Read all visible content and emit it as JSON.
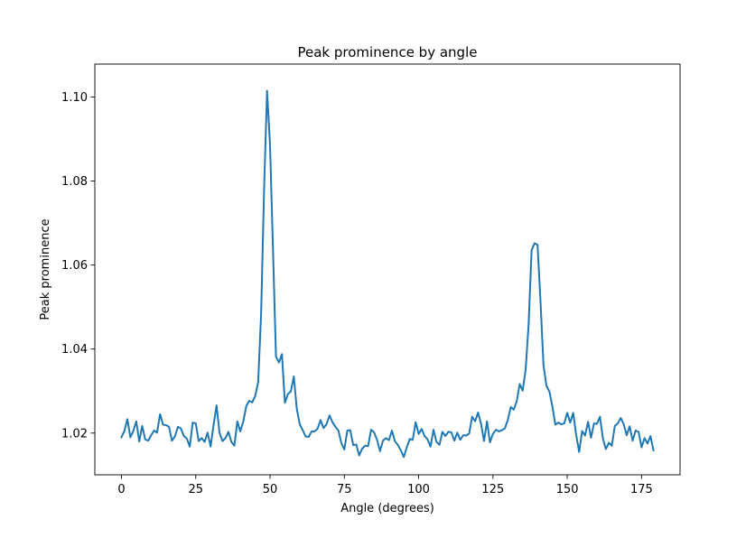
{
  "chart_data": {
    "type": "line",
    "title": "Peak prominence by angle",
    "xlabel": "Angle (degrees)",
    "ylabel": "Peak prominence",
    "xlim": [
      -8.95,
      187.95
    ],
    "ylim": [
      1.01007,
      1.10783
    ],
    "xticks": [
      0,
      25,
      50,
      75,
      100,
      125,
      150,
      175
    ],
    "yticks": [
      1.02,
      1.04,
      1.06,
      1.08,
      1.1
    ],
    "xtick_labels": [
      "0",
      "25",
      "50",
      "75",
      "100",
      "125",
      "150",
      "175"
    ],
    "ytick_labels": [
      "1.02",
      "1.04",
      "1.06",
      "1.08",
      "1.10"
    ],
    "grid": false,
    "legend": "none",
    "series": [
      {
        "color": "#1f77b4",
        "x": [
          0,
          1,
          2,
          3,
          4,
          5,
          6,
          7,
          8,
          9,
          10,
          11,
          12,
          13,
          14,
          15,
          16,
          17,
          18,
          19,
          20,
          21,
          22,
          23,
          24,
          25,
          26,
          27,
          28,
          29,
          30,
          31,
          32,
          33,
          34,
          35,
          36,
          37,
          38,
          39,
          40,
          41,
          42,
          43,
          44,
          45,
          46,
          47,
          48,
          49,
          50,
          51,
          52,
          53,
          54,
          55,
          56,
          57,
          58,
          59,
          60,
          61,
          62,
          63,
          64,
          65,
          66,
          67,
          68,
          69,
          70,
          71,
          72,
          73,
          74,
          75,
          76,
          77,
          78,
          79,
          80,
          81,
          82,
          83,
          84,
          85,
          86,
          87,
          88,
          89,
          90,
          91,
          92,
          93,
          94,
          95,
          96,
          97,
          98,
          99,
          100,
          101,
          102,
          103,
          104,
          105,
          106,
          107,
          108,
          109,
          110,
          111,
          112,
          113,
          114,
          115,
          116,
          117,
          118,
          119,
          120,
          121,
          122,
          123,
          124,
          125,
          126,
          127,
          128,
          129,
          130,
          131,
          132,
          133,
          134,
          135,
          136,
          137,
          138,
          139,
          140,
          141,
          142,
          143,
          144,
          145,
          146,
          147,
          148,
          149,
          150,
          151,
          152,
          153,
          154,
          155,
          156,
          157,
          158,
          159,
          160,
          161,
          162,
          163,
          164,
          165,
          166,
          167,
          168,
          169,
          170,
          171,
          172,
          173,
          174,
          175,
          176,
          177,
          178,
          179
        ],
        "y": [
          1.019,
          1.0205,
          1.0233,
          1.019,
          1.0205,
          1.0228,
          1.018,
          1.0217,
          1.0185,
          1.0182,
          1.0195,
          1.0206,
          1.0201,
          1.0245,
          1.022,
          1.0219,
          1.0215,
          1.0182,
          1.0192,
          1.0215,
          1.0211,
          1.0193,
          1.0187,
          1.0168,
          1.0225,
          1.0223,
          1.0181,
          1.0188,
          1.0179,
          1.0201,
          1.0168,
          1.0219,
          1.0266,
          1.0201,
          1.0181,
          1.0188,
          1.0203,
          1.0179,
          1.017,
          1.0228,
          1.0204,
          1.0228,
          1.0264,
          1.0277,
          1.0273,
          1.0288,
          1.0321,
          1.0483,
          1.078,
          1.1015,
          1.0885,
          1.0635,
          1.0382,
          1.0368,
          1.0388,
          1.0272,
          1.0293,
          1.0299,
          1.0335,
          1.0258,
          1.0221,
          1.0207,
          1.0192,
          1.0191,
          1.0204,
          1.0204,
          1.0211,
          1.0231,
          1.0212,
          1.0221,
          1.0242,
          1.0226,
          1.0215,
          1.0206,
          1.0176,
          1.0161,
          1.0206,
          1.0207,
          1.0171,
          1.0173,
          1.0147,
          1.0163,
          1.017,
          1.0169,
          1.0208,
          1.0202,
          1.0184,
          1.0157,
          1.0182,
          1.0188,
          1.0183,
          1.0206,
          1.0181,
          1.0172,
          1.0159,
          1.0143,
          1.0166,
          1.0186,
          1.0184,
          1.0226,
          1.0198,
          1.021,
          1.0193,
          1.0185,
          1.0168,
          1.0208,
          1.0179,
          1.0172,
          1.0203,
          1.0193,
          1.0203,
          1.0202,
          1.0182,
          1.0201,
          1.0184,
          1.0195,
          1.0194,
          1.0199,
          1.0239,
          1.0228,
          1.0249,
          1.0222,
          1.0181,
          1.0228,
          1.0178,
          1.0198,
          1.0208,
          1.0204,
          1.0207,
          1.0211,
          1.0231,
          1.0262,
          1.0256,
          1.0275,
          1.0317,
          1.0301,
          1.0351,
          1.0458,
          1.0635,
          1.0652,
          1.0648,
          1.0513,
          1.0362,
          1.0312,
          1.0299,
          1.0263,
          1.022,
          1.0225,
          1.0221,
          1.0223,
          1.0248,
          1.0225,
          1.0248,
          1.0196,
          1.0155,
          1.0205,
          1.0194,
          1.0227,
          1.0189,
          1.0223,
          1.0222,
          1.0239,
          1.0187,
          1.0162,
          1.0177,
          1.017,
          1.0217,
          1.0223,
          1.0236,
          1.0221,
          1.0195,
          1.0216,
          1.0182,
          1.0206,
          1.0203,
          1.0166,
          1.0188,
          1.0175,
          1.0193,
          1.0159
        ]
      }
    ]
  }
}
